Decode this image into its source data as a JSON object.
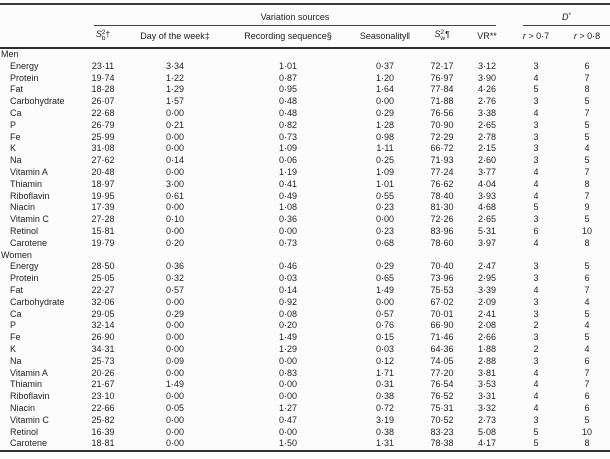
{
  "table": {
    "spanners": {
      "variation": "Variation sources",
      "d_letter": "D",
      "d_marker": "*"
    },
    "columns": {
      "sb": {
        "letter": "S",
        "sup": "2",
        "sub": "b",
        "marker": "†"
      },
      "day": "Day of the week‡",
      "recording": "Recording sequence§",
      "seasonality": "Seasonality‖",
      "sw": {
        "letter": "S",
        "sup": "2",
        "sub": "w",
        "marker": "¶"
      },
      "vr": "VR**",
      "r07": {
        "letter": "r",
        "rest": "> 0·7"
      },
      "r08": {
        "letter": "r",
        "rest": "> 0·8"
      }
    },
    "sections": [
      {
        "label": "Men",
        "rows": [
          {
            "nutrient": "Energy",
            "values": [
              "23·11",
              "3·34",
              "1·01",
              "0·37",
              "72·17",
              "3·12",
              "3",
              "6"
            ]
          },
          {
            "nutrient": "Protein",
            "values": [
              "19·74",
              "1·22",
              "0·87",
              "1·20",
              "76·97",
              "3·90",
              "4",
              "7"
            ]
          },
          {
            "nutrient": "Fat",
            "values": [
              "18·28",
              "1·29",
              "0·95",
              "1·64",
              "77·84",
              "4·26",
              "5",
              "8"
            ]
          },
          {
            "nutrient": "Carbohydrate",
            "values": [
              "26·07",
              "1·57",
              "0·48",
              "0·00",
              "71·88",
              "2·76",
              "3",
              "5"
            ]
          },
          {
            "nutrient": "Ca",
            "values": [
              "22·68",
              "0·00",
              "0·48",
              "0·29",
              "76·56",
              "3·38",
              "4",
              "7"
            ]
          },
          {
            "nutrient": "P",
            "values": [
              "26·79",
              "0·21",
              "0·82",
              "1·28",
              "70·90",
              "2·65",
              "3",
              "5"
            ]
          },
          {
            "nutrient": "Fe",
            "values": [
              "25·99",
              "0·00",
              "0·73",
              "0·98",
              "72·29",
              "2·78",
              "3",
              "5"
            ]
          },
          {
            "nutrient": "K",
            "values": [
              "31·08",
              "0·00",
              "1·09",
              "1·11",
              "66·72",
              "2·15",
              "3",
              "4"
            ]
          },
          {
            "nutrient": "Na",
            "values": [
              "27·62",
              "0·14",
              "0·06",
              "0·25",
              "71·93",
              "2·60",
              "3",
              "5"
            ]
          },
          {
            "nutrient": "Vitamin A",
            "values": [
              "20·48",
              "0·00",
              "1·19",
              "1·09",
              "77·24",
              "3·77",
              "4",
              "7"
            ]
          },
          {
            "nutrient": "Thiamin",
            "values": [
              "18·97",
              "3·00",
              "0·41",
              "1·01",
              "76·62",
              "4·04",
              "4",
              "8"
            ]
          },
          {
            "nutrient": "Riboflavin",
            "values": [
              "19·95",
              "0·61",
              "0·49",
              "0·55",
              "78·40",
              "3·93",
              "4",
              "7"
            ]
          },
          {
            "nutrient": "Niacin",
            "values": [
              "17·39",
              "0·00",
              "1·08",
              "0·23",
              "81·30",
              "4·68",
              "5",
              "9"
            ]
          },
          {
            "nutrient": "Vitamin C",
            "values": [
              "27·28",
              "0·10",
              "0·36",
              "0·00",
              "72·26",
              "2·65",
              "3",
              "5"
            ]
          },
          {
            "nutrient": "Retinol",
            "values": [
              "15·81",
              "0·00",
              "0·00",
              "0·23",
              "83·96",
              "5·31",
              "6",
              "10"
            ]
          },
          {
            "nutrient": "Carotene",
            "values": [
              "19·79",
              "0·20",
              "0·73",
              "0·68",
              "78·60",
              "3·97",
              "4",
              "8"
            ]
          }
        ]
      },
      {
        "label": "Women",
        "rows": [
          {
            "nutrient": "Energy",
            "values": [
              "28·50",
              "0·36",
              "0·46",
              "0·29",
              "70·40",
              "2·47",
              "3",
              "5"
            ]
          },
          {
            "nutrient": "Protein",
            "values": [
              "25·05",
              "0·32",
              "0·03",
              "0·65",
              "73·96",
              "2·95",
              "3",
              "6"
            ]
          },
          {
            "nutrient": "Fat",
            "values": [
              "22·27",
              "0·57",
              "0·14",
              "1·49",
              "75·53",
              "3·39",
              "4",
              "7"
            ]
          },
          {
            "nutrient": "Carbohydrate",
            "values": [
              "32·06",
              "0·00",
              "0·92",
              "0·00",
              "67·02",
              "2·09",
              "3",
              "4"
            ]
          },
          {
            "nutrient": "Ca",
            "values": [
              "29·05",
              "0·29",
              "0·08",
              "0·57",
              "70·01",
              "2·41",
              "3",
              "5"
            ]
          },
          {
            "nutrient": "P",
            "values": [
              "32·14",
              "0·00",
              "0·20",
              "0·76",
              "66·90",
              "2·08",
              "2",
              "4"
            ]
          },
          {
            "nutrient": "Fe",
            "values": [
              "26·90",
              "0·00",
              "1·49",
              "0·15",
              "71·46",
              "2·66",
              "3",
              "5"
            ]
          },
          {
            "nutrient": "K",
            "values": [
              "34·31",
              "0·00",
              "1·29",
              "0·03",
              "64·36",
              "1·88",
              "2",
              "4"
            ]
          },
          {
            "nutrient": "Na",
            "values": [
              "25·73",
              "0·09",
              "0·00",
              "0·12",
              "74·05",
              "2·88",
              "3",
              "6"
            ]
          },
          {
            "nutrient": "Vitamin A",
            "values": [
              "20·26",
              "0·00",
              "0·83",
              "1·71",
              "77·20",
              "3·81",
              "4",
              "7"
            ]
          },
          {
            "nutrient": "Thiamin",
            "values": [
              "21·67",
              "1·49",
              "0·00",
              "0·31",
              "76·54",
              "3·53",
              "4",
              "7"
            ]
          },
          {
            "nutrient": "Riboflavin",
            "values": [
              "23·10",
              "0·00",
              "0·00",
              "0·38",
              "76·52",
              "3·31",
              "4",
              "6"
            ]
          },
          {
            "nutrient": "Niacin",
            "values": [
              "22·66",
              "0·05",
              "1·27",
              "0·72",
              "75·31",
              "3·32",
              "4",
              "6"
            ]
          },
          {
            "nutrient": "Vitamin C",
            "values": [
              "25·82",
              "0·00",
              "0·47",
              "3·19",
              "70·52",
              "2·73",
              "3",
              "5"
            ]
          },
          {
            "nutrient": "Retinol",
            "values": [
              "16·39",
              "0·00",
              "0·00",
              "0·38",
              "83·23",
              "5·08",
              "5",
              "10"
            ]
          },
          {
            "nutrient": "Carotene",
            "values": [
              "18·81",
              "0·00",
              "1·50",
              "1·31",
              "78·38",
              "4·17",
              "5",
              "8"
            ]
          }
        ]
      }
    ]
  }
}
